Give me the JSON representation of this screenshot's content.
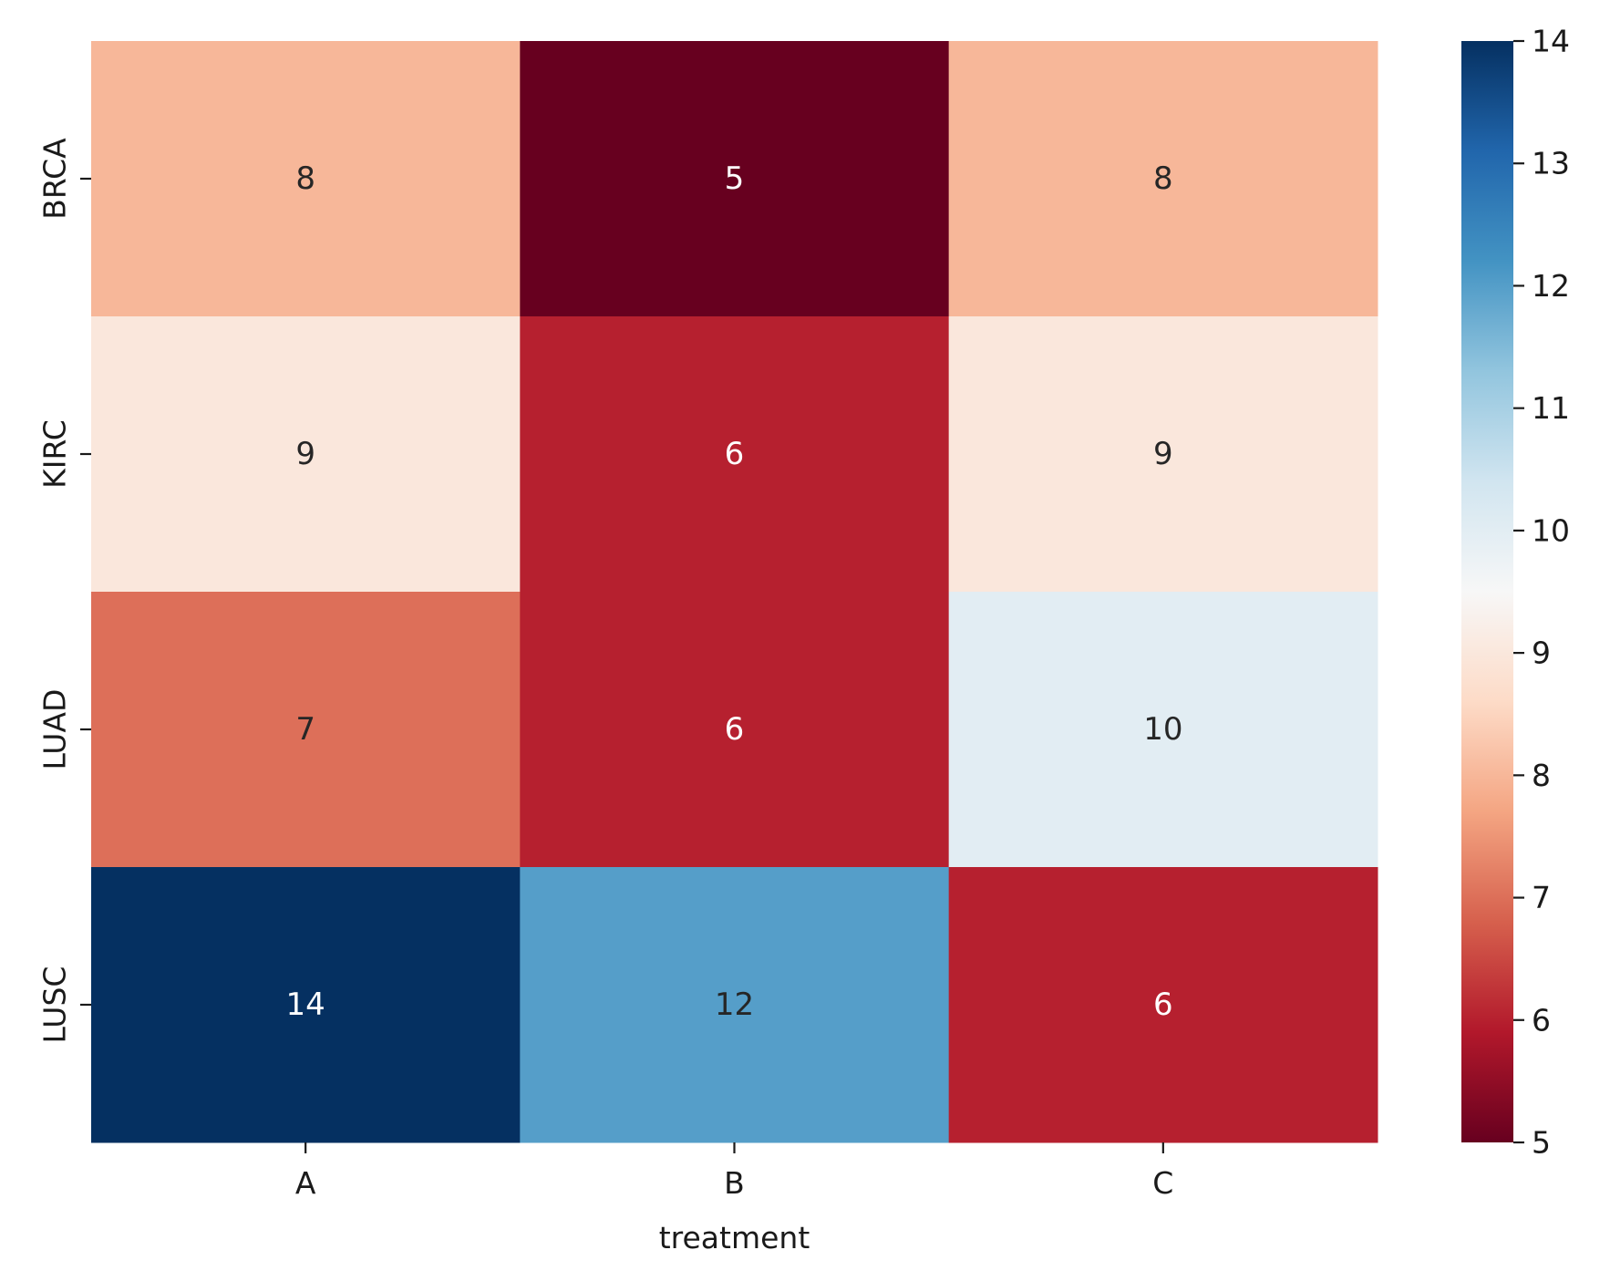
{
  "chart_data": {
    "type": "heatmap",
    "title": "",
    "xlabel": "treatment",
    "ylabel": "",
    "x_categories": [
      "A",
      "B",
      "C"
    ],
    "y_categories": [
      "BRCA",
      "KIRC",
      "LUAD",
      "LUSC"
    ],
    "values": [
      [
        8,
        5,
        8
      ],
      [
        9,
        6,
        9
      ],
      [
        7,
        6,
        10
      ],
      [
        14,
        12,
        6
      ]
    ],
    "annotations": true,
    "colormap": "RdBu",
    "colorbar": {
      "range": [
        5,
        14
      ],
      "ticks": [
        "5",
        "6",
        "7",
        "8",
        "9",
        "10",
        "11",
        "12",
        "13",
        "14"
      ]
    },
    "colormap_stops": [
      "#67001f",
      "#b2182b",
      "#d6604d",
      "#f4a582",
      "#fddbc7",
      "#f7f7f7",
      "#d1e5f0",
      "#92c5de",
      "#4393c3",
      "#2166ac",
      "#053061"
    ],
    "annotation_colors": {
      "light": "#ffffff",
      "dark": "#262626"
    }
  }
}
